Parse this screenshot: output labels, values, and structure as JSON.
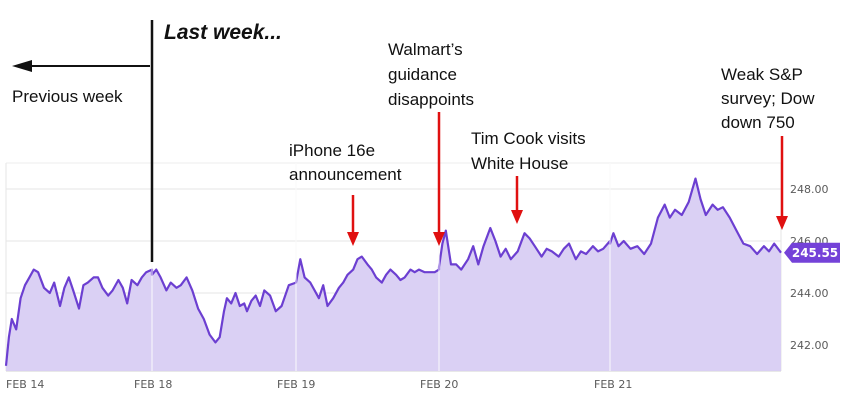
{
  "chart_data": {
    "type": "area",
    "x_categories": [
      "FEB 14",
      "FEB 18",
      "FEB 19",
      "FEB 20",
      "FEB 21"
    ],
    "yticks": [
      242.0,
      244.0,
      246.0,
      248.0
    ],
    "ylim": [
      241.0,
      249.0
    ],
    "grid": true,
    "last_price": "245.55",
    "colors": {
      "line": "#6c3fd1",
      "fill": "#d8cdf3",
      "price_tag": "#7442d8",
      "arrow": "#e01010"
    },
    "series": [
      {
        "values": [
          [
            0.0,
            241.2
          ],
          [
            0.02,
            242.3
          ],
          [
            0.04,
            243.0
          ],
          [
            0.07,
            242.6
          ],
          [
            0.1,
            243.8
          ],
          [
            0.13,
            244.3
          ],
          [
            0.16,
            244.6
          ],
          [
            0.19,
            244.9
          ],
          [
            0.22,
            244.8
          ],
          [
            0.26,
            244.2
          ],
          [
            0.3,
            244.0
          ],
          [
            0.33,
            244.4
          ],
          [
            0.37,
            243.5
          ],
          [
            0.4,
            244.2
          ],
          [
            0.43,
            244.6
          ],
          [
            0.46,
            244.1
          ],
          [
            0.5,
            243.4
          ],
          [
            0.53,
            244.3
          ],
          [
            0.56,
            244.4
          ],
          [
            0.6,
            244.6
          ],
          [
            0.63,
            244.6
          ],
          [
            0.66,
            244.2
          ],
          [
            0.7,
            243.9
          ],
          [
            0.73,
            244.1
          ],
          [
            0.77,
            244.5
          ],
          [
            0.8,
            244.2
          ],
          [
            0.83,
            243.6
          ],
          [
            0.86,
            244.5
          ],
          [
            0.9,
            244.3
          ],
          [
            0.93,
            244.6
          ],
          [
            0.96,
            244.8
          ],
          [
            1.0,
            244.9
          ],
          [
            1.0,
            244.7
          ],
          [
            1.03,
            244.9
          ],
          [
            1.06,
            244.6
          ],
          [
            1.1,
            244.1
          ],
          [
            1.13,
            244.4
          ],
          [
            1.17,
            244.2
          ],
          [
            1.2,
            244.3
          ],
          [
            1.24,
            244.6
          ],
          [
            1.28,
            244.1
          ],
          [
            1.32,
            243.4
          ],
          [
            1.36,
            243.0
          ],
          [
            1.4,
            242.4
          ],
          [
            1.44,
            242.1
          ],
          [
            1.47,
            242.3
          ],
          [
            1.5,
            243.3
          ],
          [
            1.52,
            243.8
          ],
          [
            1.55,
            243.6
          ],
          [
            1.58,
            244.0
          ],
          [
            1.61,
            243.5
          ],
          [
            1.64,
            243.6
          ],
          [
            1.66,
            243.3
          ],
          [
            1.69,
            243.7
          ],
          [
            1.72,
            243.9
          ],
          [
            1.75,
            243.5
          ],
          [
            1.78,
            244.1
          ],
          [
            1.82,
            243.9
          ],
          [
            1.86,
            243.3
          ],
          [
            1.9,
            243.5
          ],
          [
            1.95,
            244.3
          ],
          [
            2.0,
            244.4
          ],
          [
            2.0,
            244.4
          ],
          [
            2.03,
            245.3
          ],
          [
            2.06,
            244.6
          ],
          [
            2.1,
            244.4
          ],
          [
            2.13,
            244.1
          ],
          [
            2.16,
            243.8
          ],
          [
            2.19,
            244.3
          ],
          [
            2.22,
            243.5
          ],
          [
            2.26,
            243.8
          ],
          [
            2.3,
            244.2
          ],
          [
            2.33,
            244.4
          ],
          [
            2.36,
            244.7
          ],
          [
            2.4,
            244.9
          ],
          [
            2.43,
            245.3
          ],
          [
            2.46,
            245.4
          ],
          [
            2.5,
            245.1
          ],
          [
            2.53,
            244.9
          ],
          [
            2.56,
            244.6
          ],
          [
            2.6,
            244.4
          ],
          [
            2.63,
            244.7
          ],
          [
            2.66,
            244.9
          ],
          [
            2.7,
            244.7
          ],
          [
            2.73,
            244.5
          ],
          [
            2.76,
            244.6
          ],
          [
            2.8,
            244.9
          ],
          [
            2.83,
            244.8
          ],
          [
            2.86,
            244.9
          ],
          [
            2.9,
            244.8
          ],
          [
            2.94,
            244.8
          ],
          [
            2.97,
            244.8
          ],
          [
            3.0,
            244.9
          ],
          [
            3.0,
            245.0
          ],
          [
            3.02,
            245.9
          ],
          [
            3.04,
            246.4
          ],
          [
            3.07,
            245.1
          ],
          [
            3.1,
            245.1
          ],
          [
            3.13,
            244.9
          ],
          [
            3.17,
            245.3
          ],
          [
            3.2,
            245.8
          ],
          [
            3.23,
            245.1
          ],
          [
            3.26,
            245.8
          ],
          [
            3.3,
            246.5
          ],
          [
            3.33,
            246.0
          ],
          [
            3.36,
            245.4
          ],
          [
            3.39,
            245.7
          ],
          [
            3.42,
            245.3
          ],
          [
            3.46,
            245.6
          ],
          [
            3.5,
            246.3
          ],
          [
            3.53,
            246.1
          ],
          [
            3.56,
            245.8
          ],
          [
            3.6,
            245.4
          ],
          [
            3.63,
            245.7
          ],
          [
            3.66,
            245.6
          ],
          [
            3.7,
            245.4
          ],
          [
            3.73,
            245.7
          ],
          [
            3.76,
            245.9
          ],
          [
            3.8,
            245.3
          ],
          [
            3.83,
            245.6
          ],
          [
            3.86,
            245.5
          ],
          [
            3.9,
            245.8
          ],
          [
            3.93,
            245.6
          ],
          [
            3.96,
            245.7
          ],
          [
            4.0,
            246.0
          ],
          [
            4.0,
            245.9
          ],
          [
            4.02,
            246.3
          ],
          [
            4.05,
            245.8
          ],
          [
            4.08,
            246.0
          ],
          [
            4.12,
            245.7
          ],
          [
            4.16,
            245.8
          ],
          [
            4.2,
            245.5
          ],
          [
            4.24,
            245.9
          ],
          [
            4.28,
            246.9
          ],
          [
            4.32,
            247.4
          ],
          [
            4.35,
            246.9
          ],
          [
            4.38,
            247.2
          ],
          [
            4.42,
            247.0
          ],
          [
            4.46,
            247.5
          ],
          [
            4.5,
            248.4
          ],
          [
            4.53,
            247.6
          ],
          [
            4.56,
            247.0
          ],
          [
            4.6,
            247.4
          ],
          [
            4.63,
            247.2
          ],
          [
            4.66,
            247.3
          ],
          [
            4.7,
            246.9
          ],
          [
            4.74,
            246.4
          ],
          [
            4.78,
            245.9
          ],
          [
            4.82,
            245.8
          ],
          [
            4.86,
            245.5
          ],
          [
            4.9,
            245.8
          ],
          [
            4.93,
            245.6
          ],
          [
            4.96,
            245.9
          ],
          [
            5.0,
            245.55
          ]
        ]
      }
    ]
  },
  "annotations": {
    "last_week": "Last week...",
    "previous_week": "Previous week",
    "iphone": [
      "iPhone 16e",
      "announcement"
    ],
    "walmart": [
      "Walmart’s",
      "guidance",
      "disappoints"
    ],
    "timcook": [
      "Tim Cook visits",
      "White House"
    ],
    "weak": [
      "Weak S&P",
      "survey; Dow",
      "down 750"
    ]
  }
}
